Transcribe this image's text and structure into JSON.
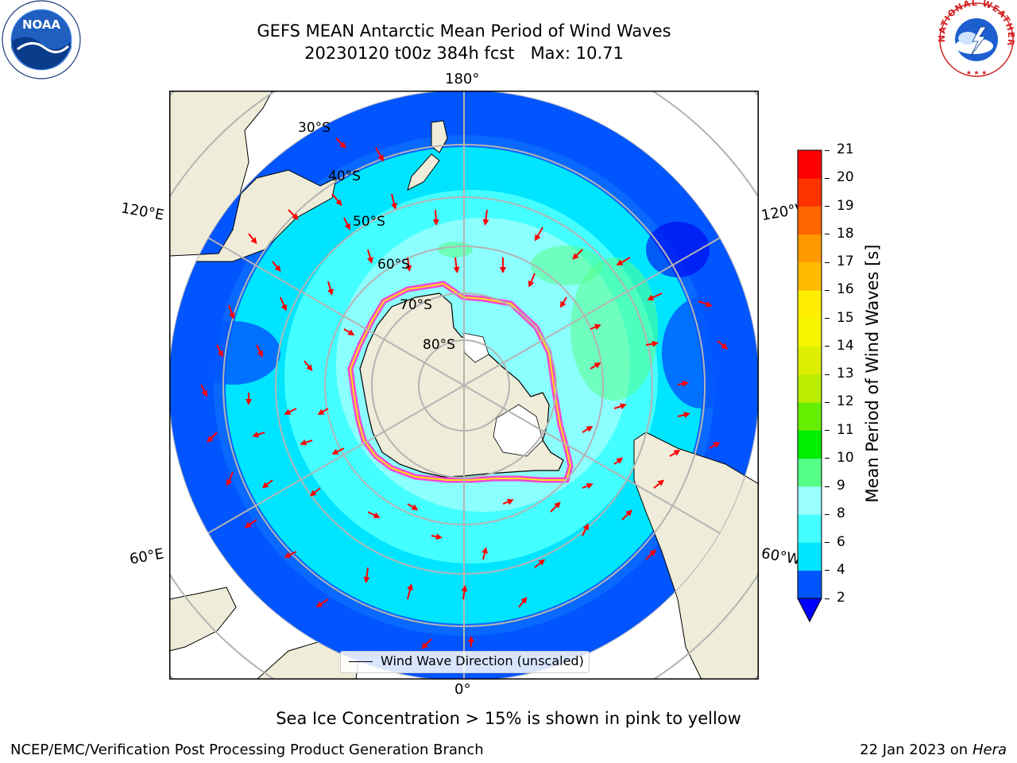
{
  "title": {
    "line1": "GEFS MEAN Antarctic Mean Period of Wind Waves",
    "line2": "20230120 t00z 384h fcst   Max: 10.71"
  },
  "map": {
    "projection": "south-polar-stereographic",
    "longitude_labels": [
      "180°",
      "120°E",
      "120°W",
      "60°E",
      "60°W",
      "0°"
    ],
    "latitude_labels": [
      "30°S",
      "40°S",
      "50°S",
      "60°S",
      "70°S",
      "80°S"
    ],
    "legend_label": "Wind Wave Direction (unscaled)",
    "colors": {
      "land": "#efedd9",
      "ice_shelf": "#ffffff",
      "ice_edge": "#ff33cc",
      "arrow": "#ff0000",
      "grid": "#b4b4b4"
    }
  },
  "colorbar": {
    "label": "Mean Period of Wind Waves [s]",
    "ticks": [
      "2",
      "4",
      "6",
      "8",
      "9",
      "10",
      "11",
      "12",
      "13",
      "14",
      "15",
      "16",
      "17",
      "18",
      "19",
      "20",
      "21"
    ],
    "colors": [
      "#0055ff",
      "#00e5ff",
      "#44ffff",
      "#99ffff",
      "#55ff88",
      "#00ee00",
      "#66ee00",
      "#bbee00",
      "#ddee00",
      "#f5f500",
      "#ffee00",
      "#ffbb00",
      "#ff9900",
      "#ff6600",
      "#ff3300",
      "#ff0000"
    ],
    "under_color": "#0000ff"
  },
  "chart_data": {
    "type": "heatmap",
    "variable": "Mean Period of Wind Waves",
    "units": "s",
    "max_value": 10.71,
    "levels": [
      2,
      4,
      6,
      8,
      9,
      10,
      11,
      12,
      13,
      14,
      15,
      16,
      17,
      18,
      19,
      20,
      21
    ]
  },
  "note": "Sea Ice Concentration > 15% is shown in pink to yellow",
  "footer": {
    "left": "NCEP/EMC/Verification Post Processing Product Generation Branch",
    "date": "22 Jan 2023 on ",
    "machine": "Hera"
  },
  "logos": {
    "noaa": "NOAA",
    "nws_top": "NATIONAL WEATHER SERVICE"
  }
}
